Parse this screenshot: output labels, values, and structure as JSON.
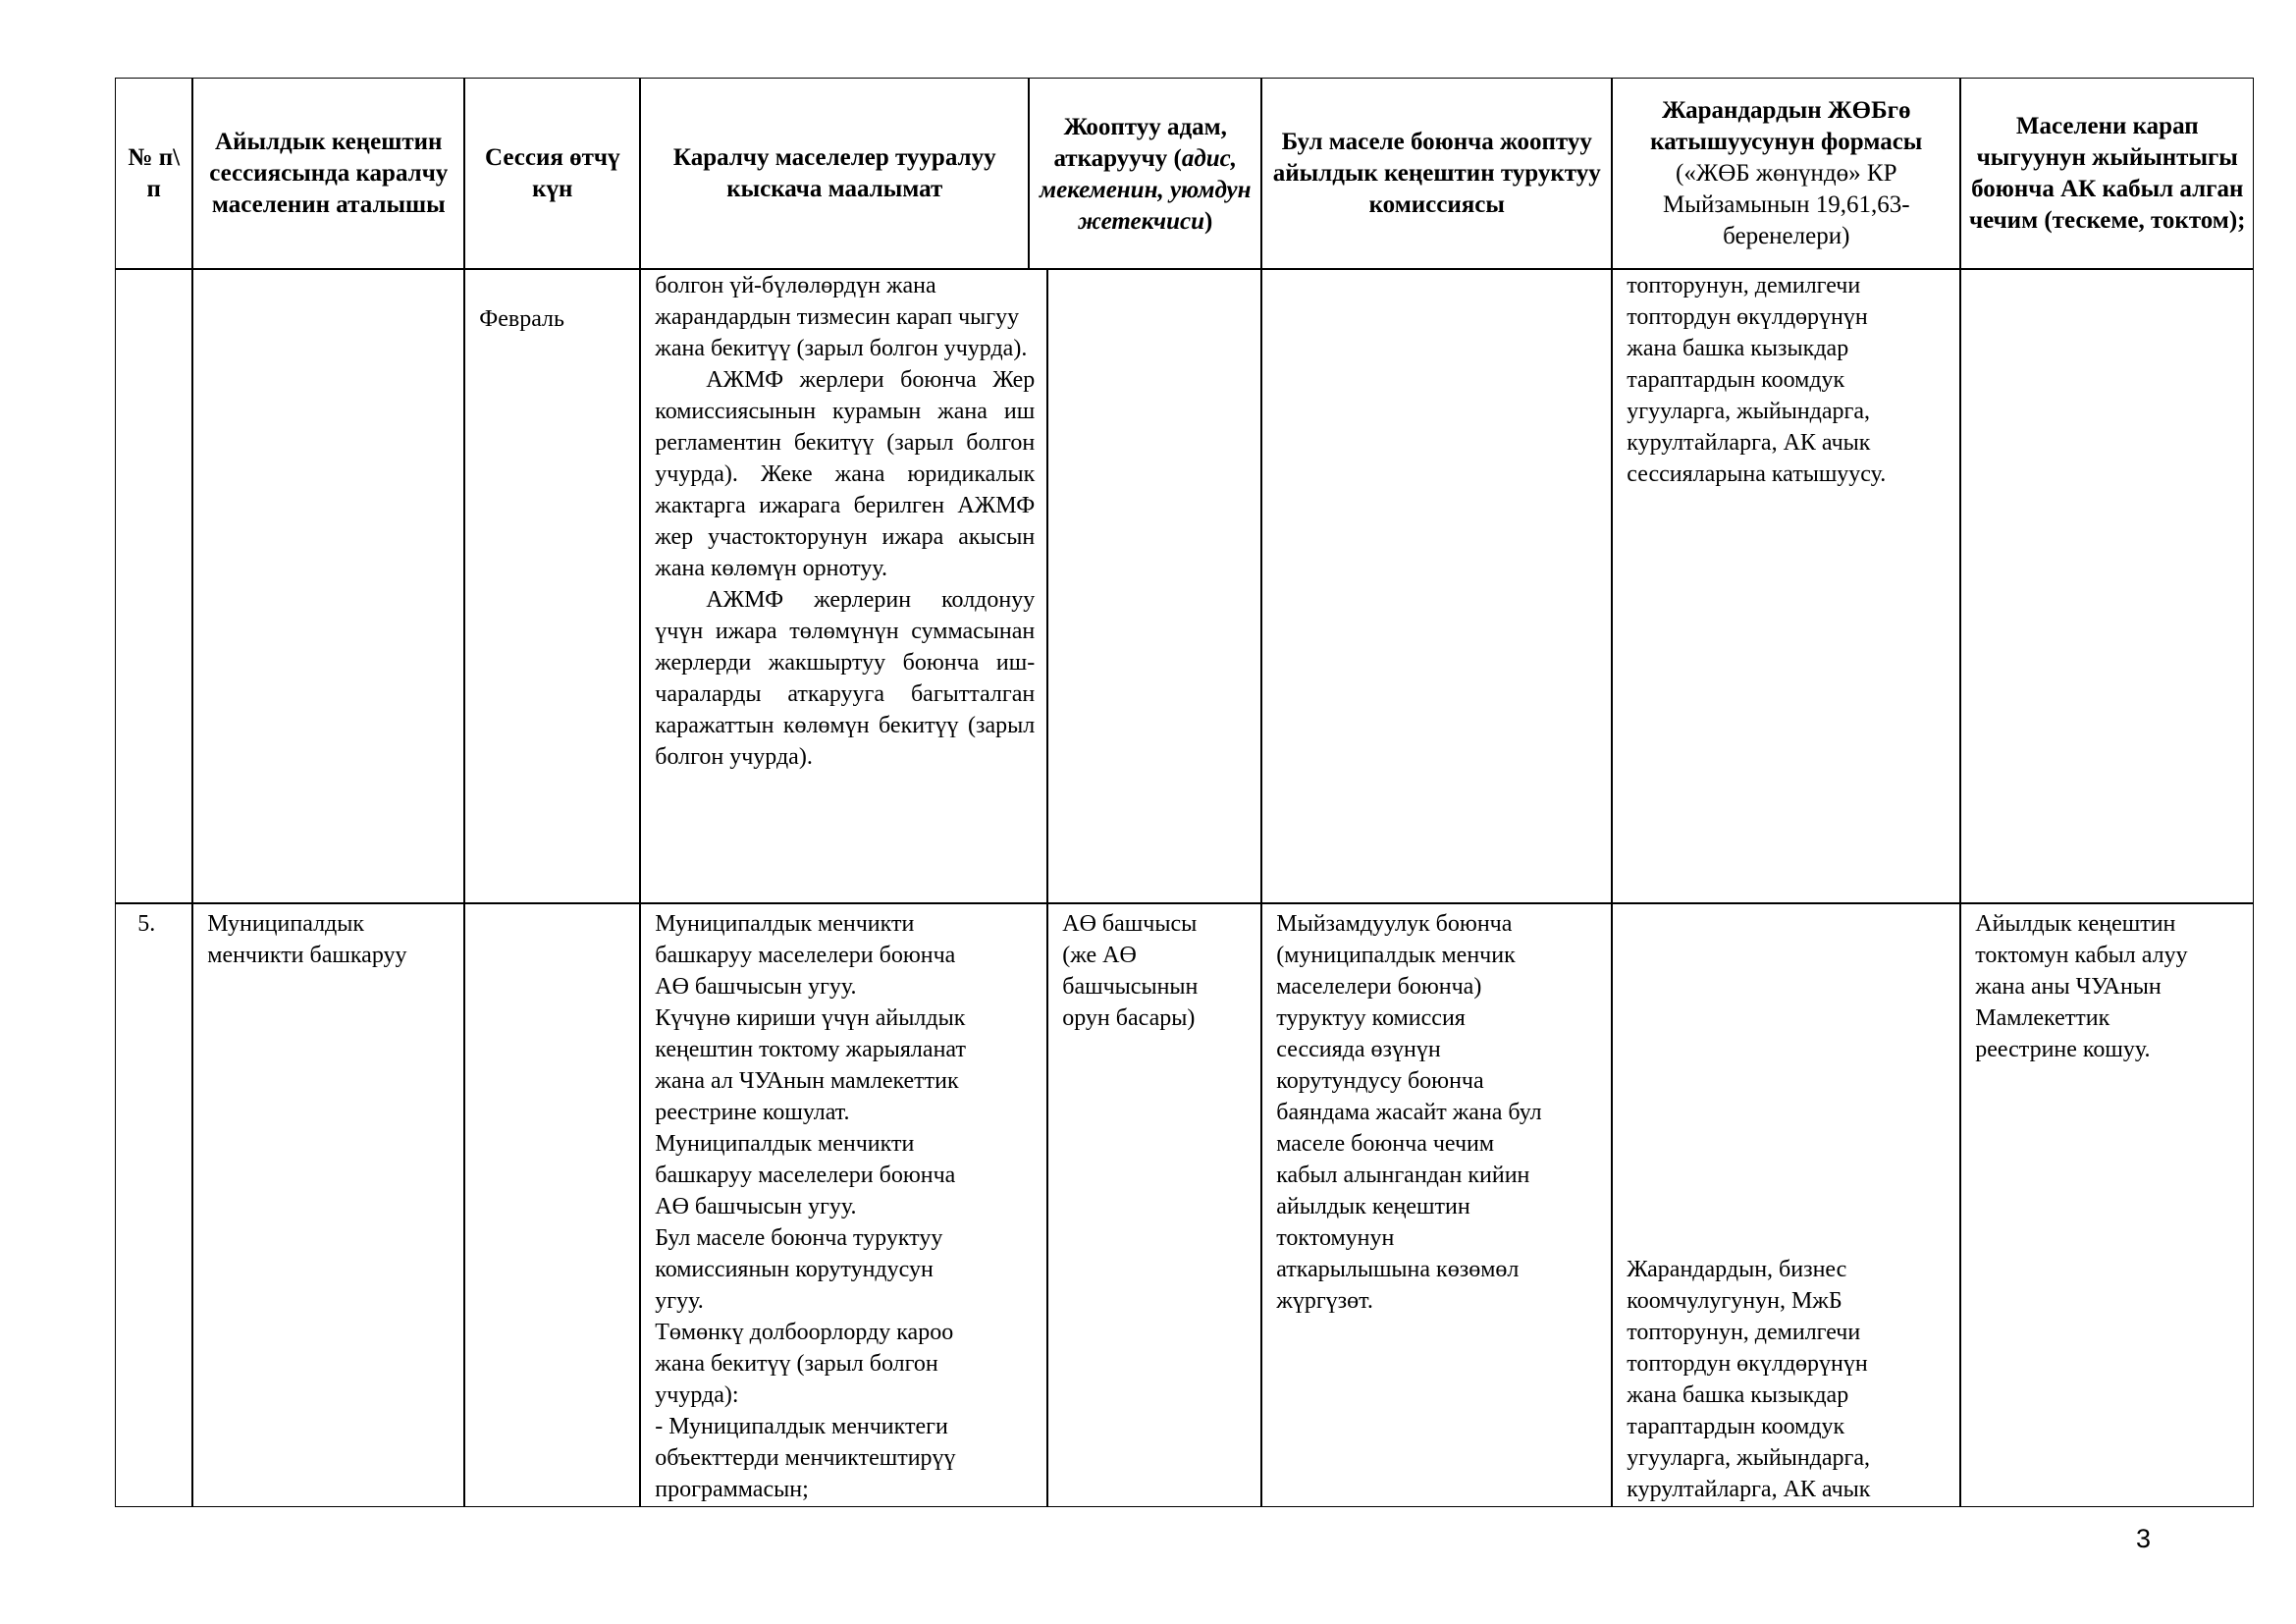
{
  "table": {
    "headers": {
      "number": "№ п\\ п",
      "issue_name": "Айылдык кеңештин сессиясында каралчу маселенин аталышы",
      "session_date": "Сессия өтчү күн",
      "summary": "Каралчу маселелер тууралуу кыскача маалымат",
      "responsible_a": "Жооптуу адам, аткаруучу (",
      "responsible_b": "адис, мекеменин, уюмдун жетекчиси",
      "responsible_c": ")",
      "commission": "Бул маселе боюнча жооптуу айылдык кеңештин туруктуу комиссиясы",
      "participation_bold": "Жарандардын ЖӨБгө катышуусунун формасы",
      "participation_normal": "(«ЖӨБ жөнүндө» КР Мыйзамынын 19,61,63-беренелери)",
      "decision": "Маселени карап чыгуунун жыйынтыгы боюнча АК кабыл алган чечим (тескеме, токтом);"
    },
    "rows": [
      {
        "number": "",
        "issue_name": "",
        "session_date": "Февраль",
        "summary_paragraphs": [
          "болгон үй-бүлөлөрдүн жана жарандардын тизмесин карап чыгуу жана бекитүү (зарыл болгон учурда).",
          "АЖМФ жерлери боюнча Жер комиссиясынын курамын жана иш регламентин бекитүү (зарыл болгон учурда). Жеке жана юридикалык жактарга ижарага берилген АЖМФ жер участокторунун ижара акысын жана көлөмүн орнотуу.",
          "АЖМФ жерлерин колдонуу үчүн ижара төлөмүнүн суммасынан жерлерди жакшыртуу боюнча иш-чараларды аткарууга багытталган каражаттын көлөмүн бекитүү (зарыл болгон учурда)."
        ],
        "responsible": "",
        "commission": "",
        "participation_lines": [
          "топторунун, демилгечи",
          "топтордун өкүлдөрүнүн",
          "жана башка кызыкдар",
          "тараптардын коомдук",
          "угууларга, жыйындарга,",
          "курултайларга, АК ачык",
          "сессияларына катышуусу."
        ],
        "decision": ""
      },
      {
        "number": "5.",
        "issue_name_lines": [
          "Муниципалдык",
          "менчикти башкаруу"
        ],
        "session_date": "",
        "summary_lines": [
          "Муниципалдык менчикти",
          "башкаруу маселелери боюнча",
          "АӨ башчысын угуу.",
          "Күчүнө кириши үчүн айылдык",
          "кеңештин токтому жарыяланат",
          "жана ал ЧУАнын мамлекеттик",
          "реестрине кошулат.",
          "Муниципалдык менчикти",
          "башкаруу маселелери боюнча",
          "АӨ башчысын угуу.",
          "Бул маселе боюнча туруктуу",
          "комиссиянын корутундусун",
          "угуу.",
          "Төмөнкү долбоорлорду кароо",
          "жана бекитүү (зарыл болгон",
          "учурда):",
          "- Муниципалдык менчиктеги",
          "объекттерди менчиктештирүү",
          "программасын;"
        ],
        "responsible_lines": [
          "АӨ башчысы",
          "(же АӨ",
          "башчысынын",
          "орун басары)"
        ],
        "commission_lines": [
          "Мыйзамдуулук боюнча",
          "(муниципалдык менчик",
          "маселелери боюнча)",
          "туруктуу комиссия",
          "сессияда өзүнүн",
          "корутундусу боюнча",
          "баяндама жасайт жана бул",
          "маселе боюнча чечим",
          "кабыл алынгандан кийин",
          "айылдык кеңештин",
          "токтомунун",
          "аткарылышына көзөмөл",
          "жүргүзөт."
        ],
        "participation_lines": [
          "Жарандардын, бизнес",
          "коомчулугунун,  МжБ",
          "топторунун, демилгечи",
          "топтордун өкүлдөрүнүн",
          "жана башка кызыкдар",
          "тараптардын коомдук",
          "угууларга, жыйындарга,",
          "курултайларга, АК ачык"
        ],
        "decision_lines": [
          "Айылдык кеңештин",
          "токтомун кабыл алуу",
          "жана аны ЧУАнын",
          "Мамлекеттик",
          "реестрине кошуу."
        ]
      }
    ]
  },
  "page_number": "3"
}
